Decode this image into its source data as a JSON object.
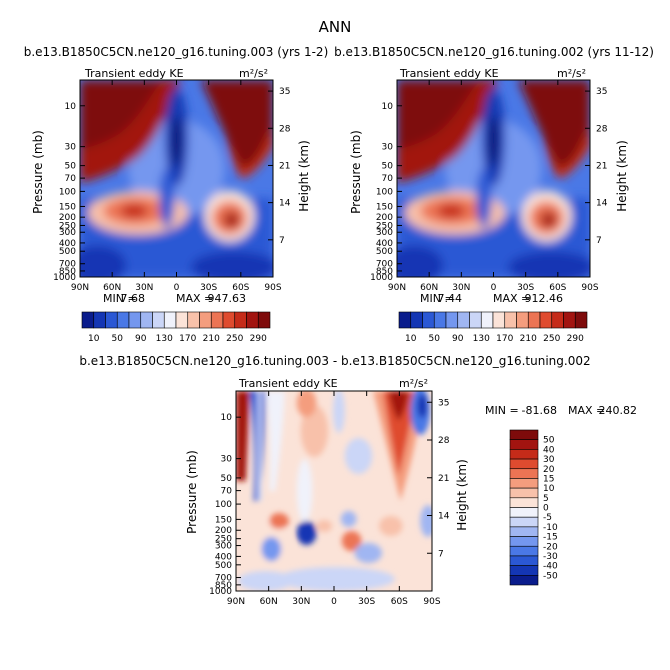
{
  "page_title": "ANN",
  "chart_data": [
    {
      "type": "heatmap",
      "title": "b.e13.B1850C5CN.ne120_g16.tuning.003 (yrs 1-2)",
      "subtitle_left": "Transient eddy KE",
      "units": "m²/s²",
      "ylabel": "Pressure (mb)",
      "ylabel_right": "Height (km)",
      "x_ticks": [
        "90N",
        "60N",
        "30N",
        "0",
        "30S",
        "60S",
        "90S"
      ],
      "y_ticks": [
        "10",
        "30",
        "50",
        "70",
        "100",
        "150",
        "200",
        "250",
        "300",
        "400",
        "500",
        "700",
        "850",
        "1000"
      ],
      "y_ticks_right": [
        "35",
        "28",
        "21",
        "14",
        "7"
      ],
      "min_label": "MIN =",
      "min_value": "7.68",
      "max_label": "MAX =",
      "max_value": "947.63",
      "colorbar_ticks": [
        "10",
        "50",
        "90",
        "130",
        "170",
        "210",
        "250",
        "290"
      ],
      "colorbar_colors": [
        "#0a1c8c",
        "#1436b4",
        "#2b58d4",
        "#4a78e6",
        "#7497ef",
        "#a0b6f2",
        "#cbd6f7",
        "#f0f2fb",
        "#fbe3d8",
        "#f8c1aa",
        "#f49d7e",
        "#ec7454",
        "#df4b2f",
        "#c52b19",
        "#a21410",
        "#7e0b0b"
      ]
    },
    {
      "type": "heatmap",
      "title": "b.e13.B1850C5CN.ne120_g16.tuning.002 (yrs 11-12)",
      "subtitle_left": "Transient eddy KE",
      "units": "m²/s²",
      "ylabel": "Pressure (mb)",
      "ylabel_right": "Height (km)",
      "x_ticks": [
        "90N",
        "60N",
        "30N",
        "0",
        "30S",
        "60S",
        "90S"
      ],
      "y_ticks": [
        "10",
        "30",
        "50",
        "70",
        "100",
        "150",
        "200",
        "250",
        "300",
        "400",
        "500",
        "700",
        "850",
        "1000"
      ],
      "y_ticks_right": [
        "35",
        "28",
        "21",
        "14",
        "7"
      ],
      "min_label": "MIN =",
      "min_value": "7.44",
      "max_label": "MAX =",
      "max_value": "912.46",
      "colorbar_ticks": [
        "10",
        "50",
        "90",
        "130",
        "170",
        "210",
        "250",
        "290"
      ],
      "colorbar_colors": [
        "#0a1c8c",
        "#1436b4",
        "#2b58d4",
        "#4a78e6",
        "#7497ef",
        "#a0b6f2",
        "#cbd6f7",
        "#f0f2fb",
        "#fbe3d8",
        "#f8c1aa",
        "#f49d7e",
        "#ec7454",
        "#df4b2f",
        "#c52b19",
        "#a21410",
        "#7e0b0b"
      ]
    },
    {
      "type": "heatmap",
      "title": "b.e13.B1850C5CN.ne120_g16.tuning.003 - b.e13.B1850C5CN.ne120_g16.tuning.002",
      "subtitle_left": "Transient eddy KE",
      "units": "m²/s²",
      "ylabel": "Pressure (mb)",
      "ylabel_right": "Height (km)",
      "x_ticks": [
        "90N",
        "60N",
        "30N",
        "0",
        "30S",
        "60S",
        "90S"
      ],
      "y_ticks": [
        "10",
        "30",
        "50",
        "70",
        "100",
        "150",
        "200",
        "250",
        "300",
        "400",
        "500",
        "700",
        "850",
        "1000"
      ],
      "y_ticks_right": [
        "35",
        "28",
        "21",
        "14",
        "7"
      ],
      "min_label": "MIN =",
      "min_value": "-81.68",
      "max_label": "MAX =",
      "max_value": "240.82",
      "colorbar_ticks": [
        "50",
        "40",
        "30",
        "20",
        "15",
        "10",
        "5",
        "0",
        "-5",
        "-10",
        "-15",
        "-20",
        "-30",
        "-40",
        "-50"
      ],
      "colorbar_colors": [
        "#7e0b0b",
        "#a21410",
        "#c52b19",
        "#df4b2f",
        "#ec7454",
        "#f49d7e",
        "#f8c1aa",
        "#fbe3d8",
        "#f0f2fb",
        "#cbd6f7",
        "#a0b6f2",
        "#7497ef",
        "#4a78e6",
        "#2b58d4",
        "#1436b4",
        "#0a1c8c"
      ]
    }
  ]
}
